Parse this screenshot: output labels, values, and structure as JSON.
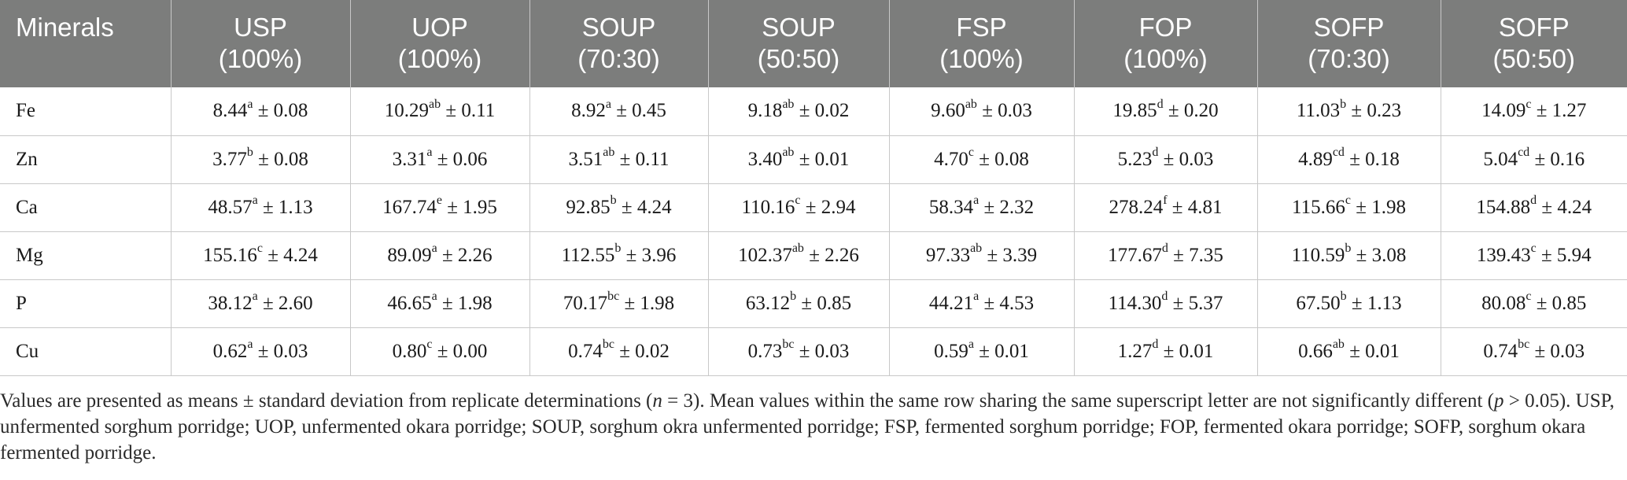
{
  "table": {
    "headers": [
      {
        "line1": "Minerals",
        "line2": ""
      },
      {
        "line1": "USP",
        "line2": "(100%)"
      },
      {
        "line1": "UOP",
        "line2": "(100%)"
      },
      {
        "line1": "SOUP",
        "line2": "(70:30)"
      },
      {
        "line1": "SOUP",
        "line2": "(50:50)"
      },
      {
        "line1": "FSP",
        "line2": "(100%)"
      },
      {
        "line1": "FOP",
        "line2": "(100%)"
      },
      {
        "line1": "SOFP",
        "line2": "(70:30)"
      },
      {
        "line1": "SOFP",
        "line2": "(50:50)"
      }
    ],
    "rows": [
      {
        "mineral": "Fe",
        "cells": [
          {
            "mean": "8.44",
            "sup": "a",
            "sd": "0.08"
          },
          {
            "mean": "10.29",
            "sup": "ab",
            "sd": "0.11"
          },
          {
            "mean": "8.92",
            "sup": "a",
            "sd": "0.45"
          },
          {
            "mean": "9.18",
            "sup": "ab",
            "sd": "0.02"
          },
          {
            "mean": "9.60",
            "sup": "ab",
            "sd": "0.03"
          },
          {
            "mean": "19.85",
            "sup": "d",
            "sd": "0.20"
          },
          {
            "mean": "11.03",
            "sup": "b",
            "sd": "0.23"
          },
          {
            "mean": "14.09",
            "sup": "c",
            "sd": "1.27"
          }
        ]
      },
      {
        "mineral": "Zn",
        "cells": [
          {
            "mean": "3.77",
            "sup": "b",
            "sd": "0.08"
          },
          {
            "mean": "3.31",
            "sup": "a",
            "sd": "0.06"
          },
          {
            "mean": "3.51",
            "sup": "ab",
            "sd": "0.11"
          },
          {
            "mean": "3.40",
            "sup": "ab",
            "sd": "0.01"
          },
          {
            "mean": "4.70",
            "sup": "c",
            "sd": "0.08"
          },
          {
            "mean": "5.23",
            "sup": "d",
            "sd": "0.03"
          },
          {
            "mean": "4.89",
            "sup": "cd",
            "sd": "0.18"
          },
          {
            "mean": "5.04",
            "sup": "cd",
            "sd": "0.16"
          }
        ]
      },
      {
        "mineral": "Ca",
        "cells": [
          {
            "mean": "48.57",
            "sup": "a",
            "sd": "1.13"
          },
          {
            "mean": "167.74",
            "sup": "e",
            "sd": "1.95"
          },
          {
            "mean": "92.85",
            "sup": "b",
            "sd": "4.24"
          },
          {
            "mean": "110.16",
            "sup": "c",
            "sd": "2.94"
          },
          {
            "mean": "58.34",
            "sup": "a",
            "sd": "2.32"
          },
          {
            "mean": "278.24",
            "sup": "f",
            "sd": "4.81"
          },
          {
            "mean": "115.66",
            "sup": "c",
            "sd": "1.98"
          },
          {
            "mean": "154.88",
            "sup": "d",
            "sd": "4.24"
          }
        ]
      },
      {
        "mineral": "Mg",
        "cells": [
          {
            "mean": "155.16",
            "sup": "c",
            "sd": "4.24"
          },
          {
            "mean": "89.09",
            "sup": "a",
            "sd": "2.26"
          },
          {
            "mean": "112.55",
            "sup": "b",
            "sd": "3.96"
          },
          {
            "mean": "102.37",
            "sup": "ab",
            "sd": "2.26"
          },
          {
            "mean": "97.33",
            "sup": "ab",
            "sd": "3.39"
          },
          {
            "mean": "177.67",
            "sup": "d",
            "sd": "7.35"
          },
          {
            "mean": "110.59",
            "sup": "b",
            "sd": "3.08"
          },
          {
            "mean": "139.43",
            "sup": "c",
            "sd": "5.94"
          }
        ]
      },
      {
        "mineral": "P",
        "cells": [
          {
            "mean": "38.12",
            "sup": "a",
            "sd": "2.60"
          },
          {
            "mean": "46.65",
            "sup": "a",
            "sd": "1.98"
          },
          {
            "mean": "70.17",
            "sup": "bc",
            "sd": "1.98"
          },
          {
            "mean": "63.12",
            "sup": "b",
            "sd": "0.85"
          },
          {
            "mean": "44.21",
            "sup": "a",
            "sd": "4.53"
          },
          {
            "mean": "114.30",
            "sup": "d",
            "sd": "5.37"
          },
          {
            "mean": "67.50",
            "sup": "b",
            "sd": "1.13"
          },
          {
            "mean": "80.08",
            "sup": "c",
            "sd": "0.85"
          }
        ]
      },
      {
        "mineral": "Cu",
        "cells": [
          {
            "mean": "0.62",
            "sup": "a",
            "sd": "0.03"
          },
          {
            "mean": "0.80",
            "sup": "c",
            "sd": "0.00"
          },
          {
            "mean": "0.74",
            "sup": "bc",
            "sd": "0.02"
          },
          {
            "mean": "0.73",
            "sup": "bc",
            "sd": "0.03"
          },
          {
            "mean": "0.59",
            "sup": "a",
            "sd": "0.01"
          },
          {
            "mean": "1.27",
            "sup": "d",
            "sd": "0.01"
          },
          {
            "mean": "0.66",
            "sup": "ab",
            "sd": "0.01"
          },
          {
            "mean": "0.74",
            "sup": "bc",
            "sd": "0.03"
          }
        ]
      }
    ]
  },
  "footnote": {
    "part1": "Values are presented as means ± standard deviation from replicate determinations (",
    "n_symbol": "n",
    "part2": " = 3). Mean values within the same row sharing the same superscript letter are not significantly different (",
    "p_symbol": "p",
    "part3": " > 0.05). USP, unfermented sorghum porridge; UOP, unfermented okara porridge; SOUP, sorghum okra unfermented porridge; FSP, fermented sorghum porridge; FOP, fermented okara porridge; SOFP, sorghum okara fermented porridge."
  },
  "colors": {
    "header_bg": "#7c7d7c",
    "header_text": "#ffffff",
    "grid": "#c8c8c8",
    "body_text": "#1a1a1a"
  }
}
